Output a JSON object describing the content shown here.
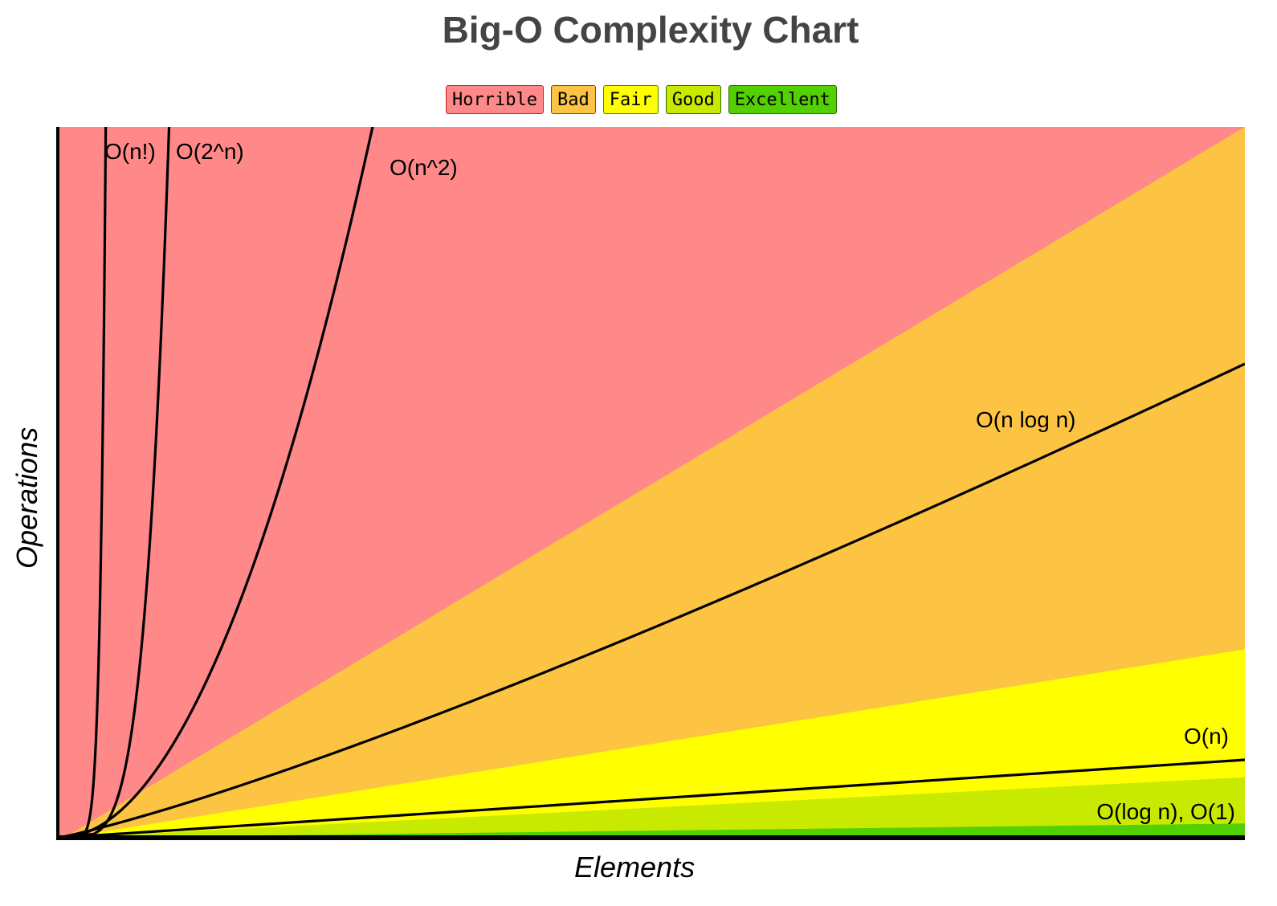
{
  "chart_data": {
    "type": "area",
    "title": "Big-O Complexity Chart",
    "xlabel": "Elements",
    "ylabel": "Operations",
    "grid": false,
    "legend_placement": "top-center",
    "legend": [
      {
        "label": "Horrible",
        "color": "#ff8989",
        "border": "#cc2222"
      },
      {
        "label": "Bad",
        "color": "#fdc443",
        "border": "#cc2222"
      },
      {
        "label": "Fair",
        "color": "#ffff00",
        "border": "#448800"
      },
      {
        "label": "Good",
        "color": "#c8ea00",
        "border": "#336600"
      },
      {
        "label": "Excellent",
        "color": "#53d000",
        "border": "#336600"
      }
    ],
    "xlim": [
      0,
      100
    ],
    "ylim": [
      0,
      100
    ],
    "regions": [
      {
        "name": "Horrible",
        "color": "#ff8989"
      },
      {
        "name": "Bad",
        "color": "#fdc443",
        "upper_slope": 1.0
      },
      {
        "name": "Fair",
        "color": "#ffff00",
        "upper_slope": 0.265
      },
      {
        "name": "Good",
        "color": "#c8ea00",
        "upper_slope": 0.085
      },
      {
        "name": "Excellent",
        "color": "#53d000",
        "upper_slope": 0.02
      }
    ],
    "series": [
      {
        "name": "O(n!)",
        "label": "O(n!)",
        "kind": "factorial"
      },
      {
        "name": "O(2^n)",
        "label": "O(2^n)",
        "kind": "exp"
      },
      {
        "name": "O(n^2)",
        "label": "O(n^2)",
        "kind": "square"
      },
      {
        "name": "O(n log n)",
        "label": "O(n log n)",
        "kind": "nlogn"
      },
      {
        "name": "O(n)",
        "label": "O(n)",
        "kind": "linear"
      },
      {
        "name": "O(log n), O(1)",
        "label": "O(log n), O(1)",
        "kind": "const"
      }
    ]
  },
  "colors": {
    "title": "#444444",
    "line": "#000000"
  }
}
